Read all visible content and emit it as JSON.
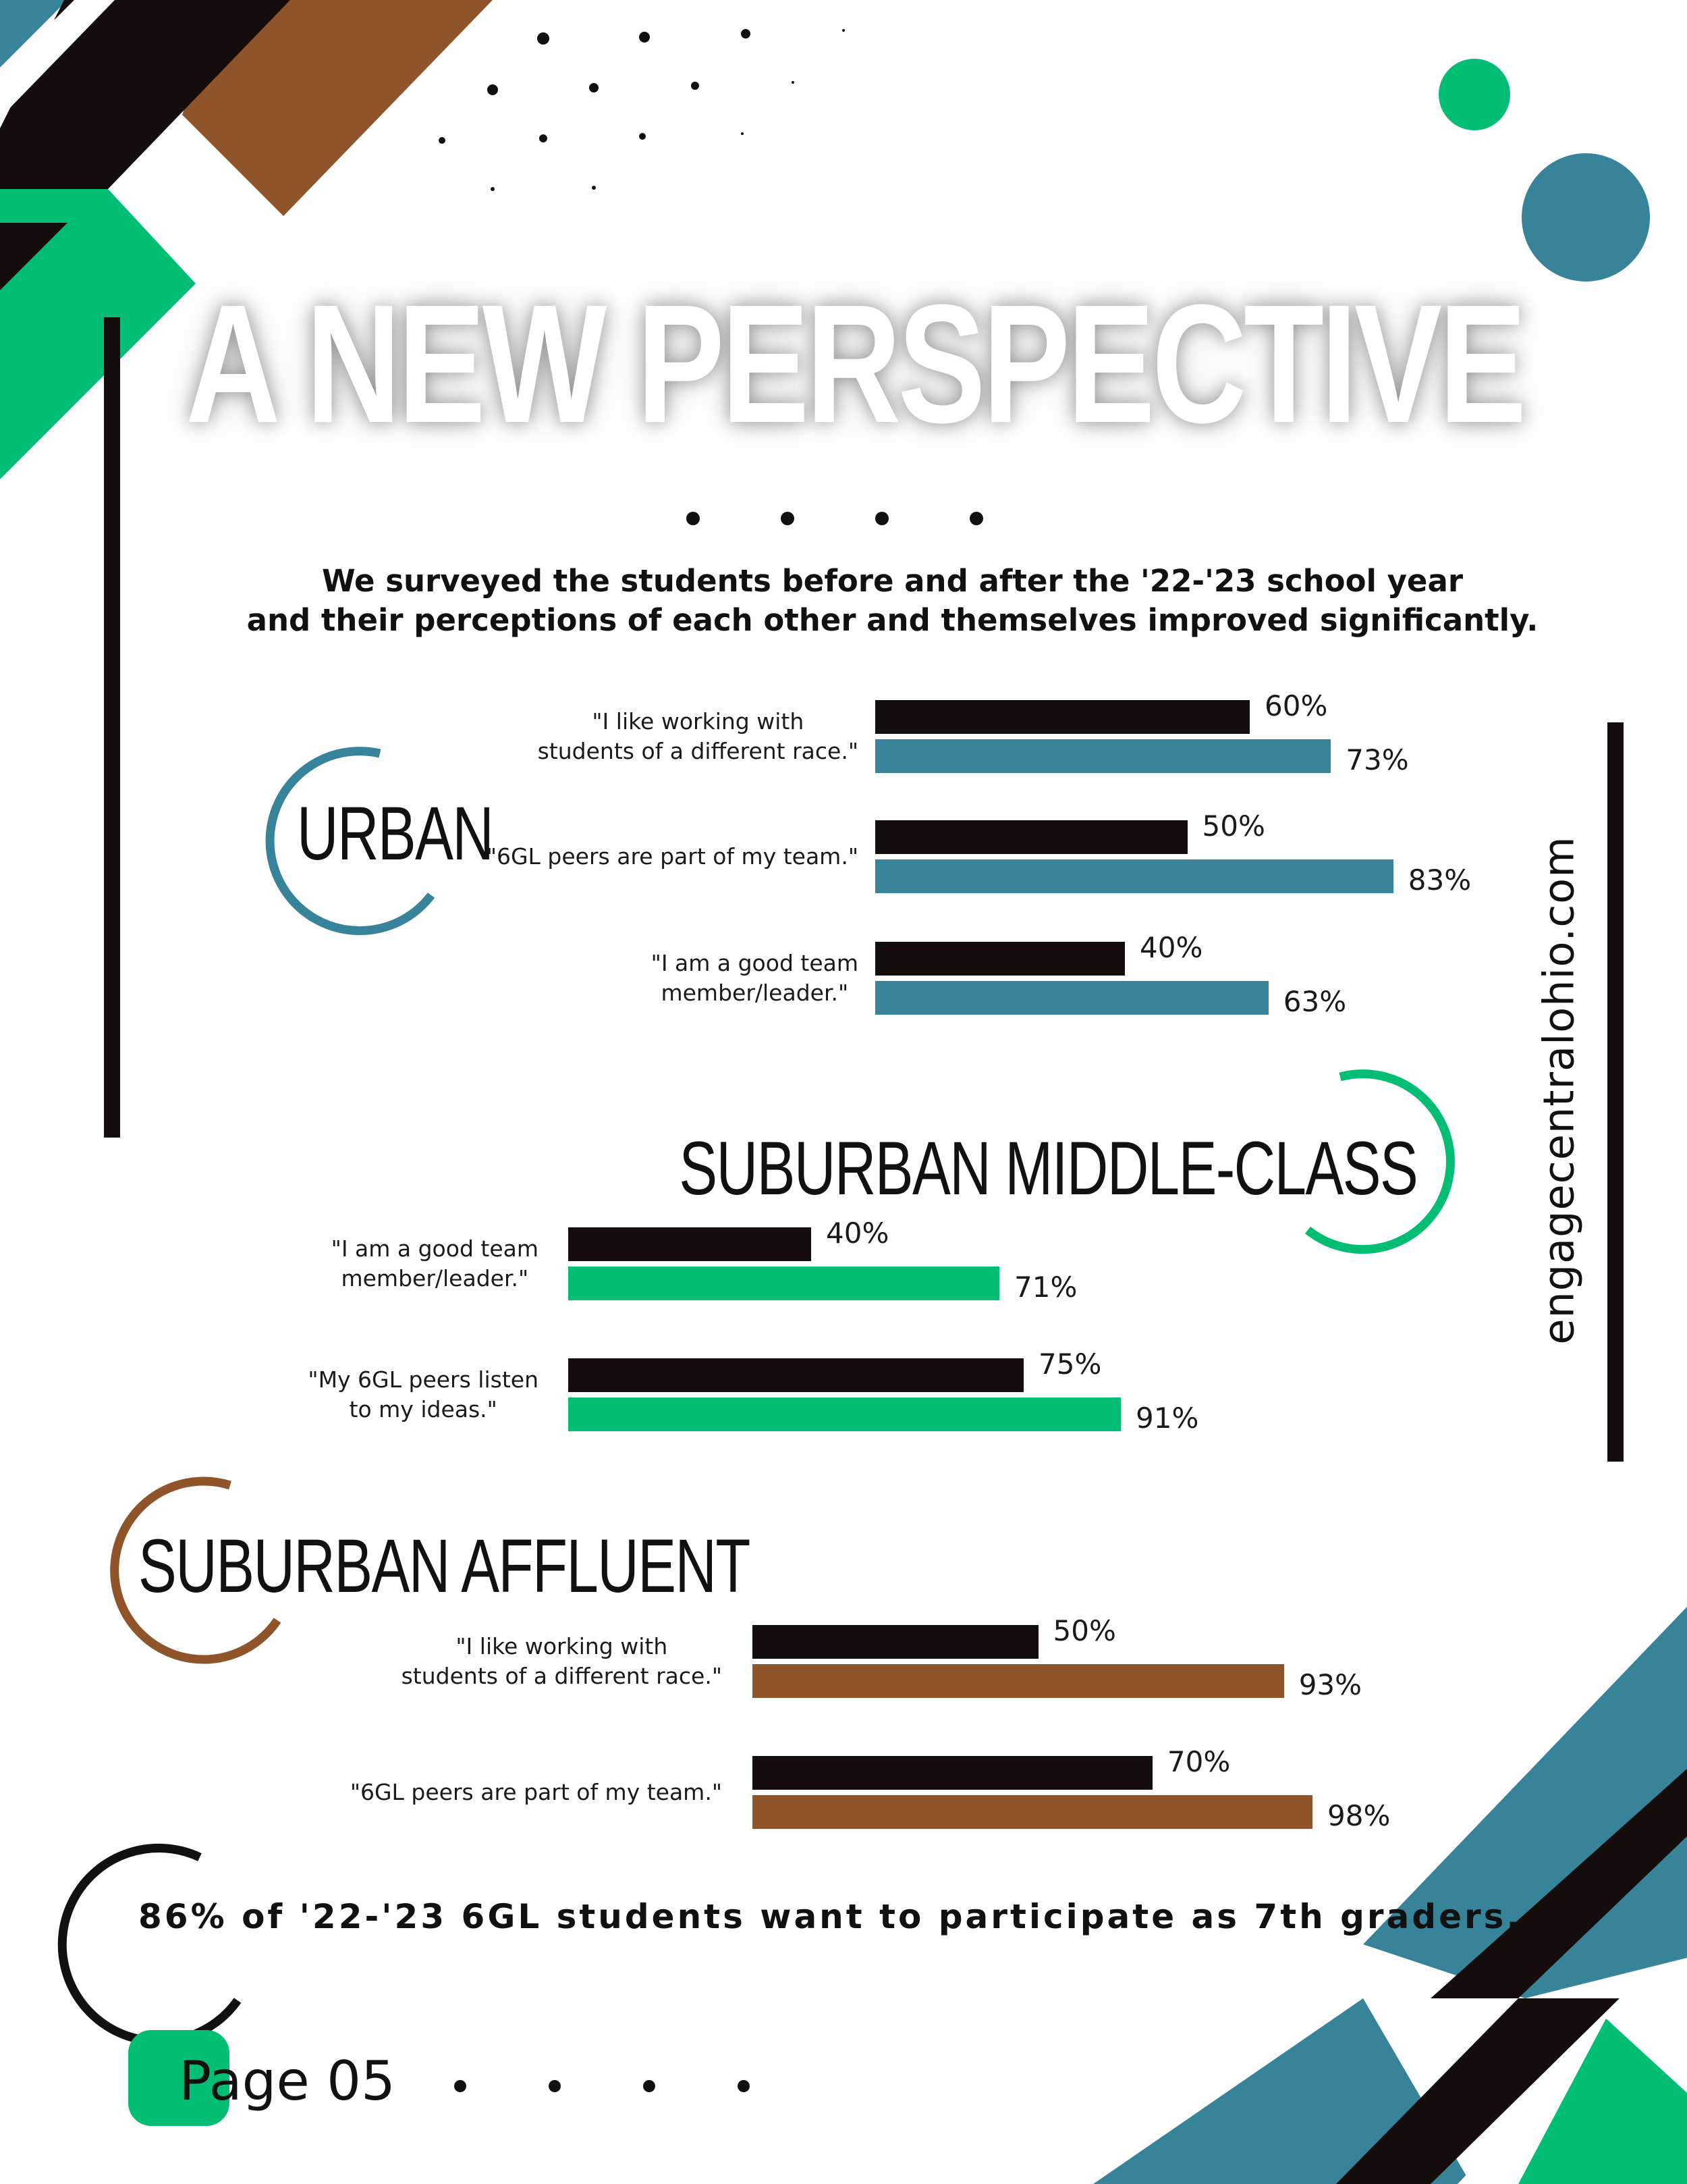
{
  "title": "A NEW PERSPECTIVE",
  "intro": {
    "line1": "We surveyed the students before and after the '22-'23 school year",
    "line2": "and their perceptions of each other and themselves improved significantly."
  },
  "website": "engagecentralohio.com",
  "footer": {
    "statement": "86% of '22-'23 6GL students want to participate as 7th graders.",
    "page_label": "Page 05"
  },
  "colors": {
    "before": "#150d0b",
    "urban": "#36839a",
    "suburban_middle_class": "#02bd74",
    "suburban_affluent": "#8f542a"
  },
  "chart_data": [
    {
      "type": "bar",
      "title": "URBAN",
      "categories": [
        [
          "\"I like working with",
          "students of a different race.\""
        ],
        [
          "\"6GL peers are part of my team.\""
        ],
        [
          "\"I am a good team",
          "member/leader.\""
        ]
      ],
      "series": [
        {
          "values": [
            60,
            50,
            40
          ],
          "labels": [
            "60%",
            "50%",
            "40%"
          ]
        },
        {
          "values": [
            73,
            83,
            63
          ],
          "labels": [
            "73%",
            "83%",
            "63%"
          ]
        }
      ],
      "ylim": [
        0,
        100
      ]
    },
    {
      "type": "bar",
      "title": "SUBURBAN MIDDLE-CLASS",
      "categories": [
        [
          "\"I am a good team",
          "member/leader.\""
        ],
        [
          "\"My 6GL peers listen",
          "to my ideas.\""
        ]
      ],
      "series": [
        {
          "values": [
            40,
            75
          ],
          "labels": [
            "40%",
            "75%"
          ]
        },
        {
          "values": [
            71,
            91
          ],
          "labels": [
            "71%",
            "91%"
          ]
        }
      ],
      "ylim": [
        0,
        100
      ]
    },
    {
      "type": "bar",
      "title": "SUBURBAN AFFLUENT",
      "categories": [
        [
          "\"I like working with",
          "students of a different race.\""
        ],
        [
          "\"6GL peers are part of my team.\""
        ]
      ],
      "series": [
        {
          "values": [
            50,
            70
          ],
          "labels": [
            "50%",
            "70%"
          ]
        },
        {
          "values": [
            93,
            98
          ],
          "labels": [
            "93%",
            "98%"
          ]
        }
      ],
      "ylim": [
        0,
        100
      ]
    }
  ]
}
